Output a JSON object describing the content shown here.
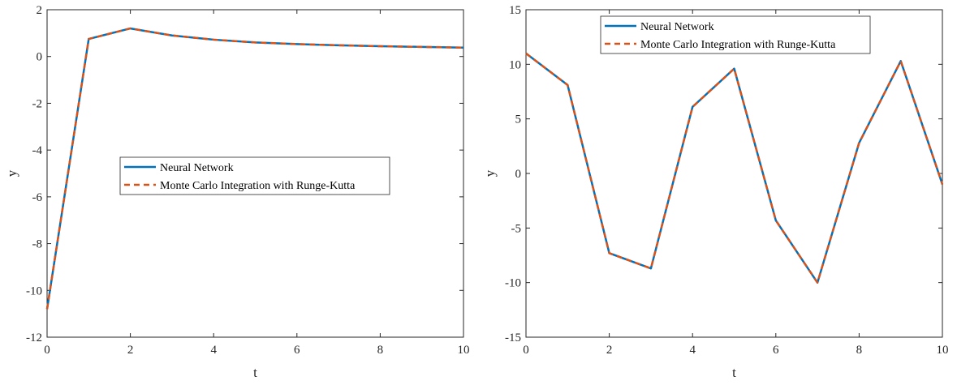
{
  "chart_data": [
    {
      "type": "line",
      "xlabel": "t",
      "ylabel": "y",
      "xlim": [
        0,
        10
      ],
      "ylim": [
        -12,
        2
      ],
      "xticks": [
        0,
        2,
        4,
        6,
        8,
        10
      ],
      "yticks": [
        -12,
        -10,
        -8,
        -6,
        -4,
        -2,
        0,
        2
      ],
      "grid": false,
      "legend_position": "center",
      "x": [
        0,
        1,
        2,
        3,
        4,
        5,
        6,
        7,
        8,
        9,
        10
      ],
      "series": [
        {
          "name": "Neural Network",
          "color": "#0072BD",
          "style": "solid",
          "values": [
            -10.8,
            0.75,
            1.2,
            0.9,
            0.72,
            0.6,
            0.53,
            0.48,
            0.44,
            0.41,
            0.38
          ]
        },
        {
          "name": "Monte Carlo Integration with Runge-Kutta",
          "color": "#D95319",
          "style": "dashed",
          "values": [
            -10.8,
            0.75,
            1.2,
            0.9,
            0.72,
            0.6,
            0.53,
            0.48,
            0.44,
            0.41,
            0.38
          ]
        }
      ]
    },
    {
      "type": "line",
      "xlabel": "t",
      "ylabel": "y",
      "xlim": [
        0,
        10
      ],
      "ylim": [
        -15,
        15
      ],
      "xticks": [
        0,
        2,
        4,
        6,
        8,
        10
      ],
      "yticks": [
        -15,
        -10,
        -5,
        0,
        5,
        10,
        15
      ],
      "grid": false,
      "legend_position": "top",
      "x": [
        0,
        1,
        2,
        3,
        4,
        5,
        6,
        7,
        8,
        9,
        10
      ],
      "series": [
        {
          "name": "Neural Network",
          "color": "#0072BD",
          "style": "solid",
          "values": [
            11.0,
            8.1,
            -7.3,
            -8.7,
            6.1,
            9.6,
            -4.3,
            -10.0,
            2.8,
            10.3,
            -1.0
          ]
        },
        {
          "name": "Monte Carlo Integration with Runge-Kutta",
          "color": "#D95319",
          "style": "dashed",
          "values": [
            11.0,
            8.1,
            -7.3,
            -8.7,
            6.1,
            9.6,
            -4.3,
            -10.0,
            2.8,
            10.3,
            -1.0
          ]
        }
      ]
    }
  ]
}
